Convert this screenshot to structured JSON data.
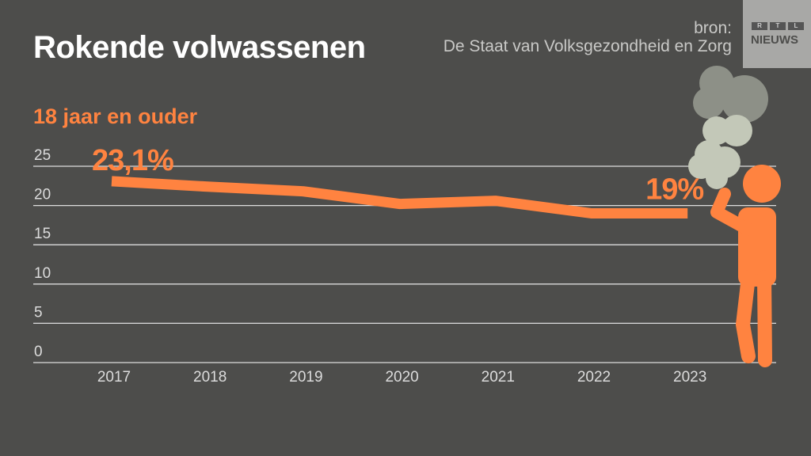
{
  "header": {
    "title": "Rokende volwassenen",
    "source_label": "bron:",
    "source": "De Staat van Volksgezondheid en Zorg",
    "logo_text": [
      "R",
      "T",
      "L"
    ],
    "logo_name": "NIEUWS"
  },
  "chart_data": {
    "type": "line",
    "subtitle": "18 jaar en ouder",
    "categories": [
      "2017",
      "2018",
      "2019",
      "2020",
      "2021",
      "2022",
      "2023"
    ],
    "values": [
      23.1,
      22.4,
      21.8,
      20.2,
      20.6,
      19.0,
      19.0
    ],
    "annotations": [
      {
        "category": "2017",
        "text": "23,1%"
      },
      {
        "category": "2023",
        "text": "19%"
      }
    ],
    "yticks": [
      "0",
      "5",
      "10",
      "15",
      "20",
      "25"
    ],
    "ylim": [
      0,
      25
    ],
    "grid": true,
    "colors": {
      "line": "#ff8340",
      "background": "#4d4d4b",
      "grid": "#dddddd",
      "smoke": "#c3c8b8"
    }
  }
}
